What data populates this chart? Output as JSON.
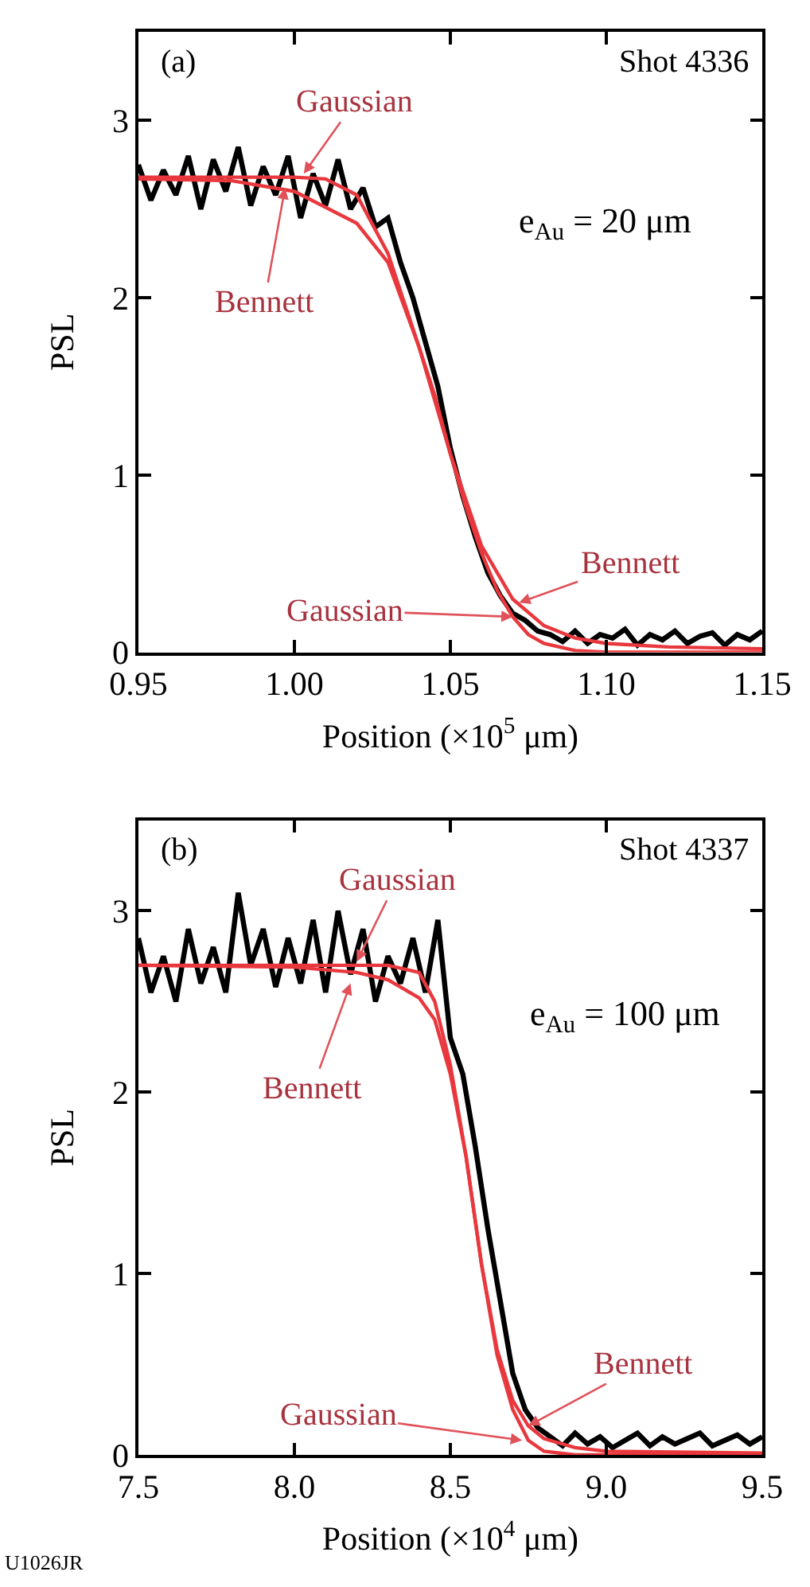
{
  "chart_data": [
    {
      "type": "line",
      "xlabel": "Position (×10$^{5}$ μm)",
      "ylabel": "PSL",
      "xlim": [
        0.95,
        1.15
      ],
      "xticks": [
        {
          "value": 0.95,
          "label": "0.95"
        },
        {
          "value": 1.0,
          "label": "1.00"
        },
        {
          "value": 1.05,
          "label": "1.05"
        },
        {
          "value": 1.1,
          "label": "1.10"
        },
        {
          "value": 1.15,
          "label": "1.15"
        }
      ],
      "ylim": [
        0,
        3.5
      ],
      "yticks": [
        0,
        1,
        2,
        3
      ],
      "series": [
        {
          "color": "#000000",
          "x": [
            0.95,
            0.954,
            0.958,
            0.962,
            0.966,
            0.97,
            0.974,
            0.978,
            0.982,
            0.986,
            0.99,
            0.994,
            0.998,
            1.002,
            1.006,
            1.01,
            1.014,
            1.018,
            1.022,
            1.026,
            1.03,
            1.034,
            1.038,
            1.042,
            1.046,
            1.05,
            1.054,
            1.058,
            1.062,
            1.066,
            1.07,
            1.074,
            1.078,
            1.082,
            1.086,
            1.09,
            1.094,
            1.098,
            1.102,
            1.106,
            1.11,
            1.114,
            1.118,
            1.122,
            1.126,
            1.13,
            1.134,
            1.138,
            1.142,
            1.146,
            1.15
          ],
          "values": [
            2.75,
            2.55,
            2.72,
            2.58,
            2.8,
            2.5,
            2.78,
            2.6,
            2.85,
            2.52,
            2.74,
            2.58,
            2.8,
            2.45,
            2.7,
            2.52,
            2.78,
            2.5,
            2.62,
            2.4,
            2.45,
            2.2,
            2.0,
            1.75,
            1.5,
            1.15,
            0.88,
            0.65,
            0.45,
            0.32,
            0.22,
            0.18,
            0.12,
            0.1,
            0.06,
            0.12,
            0.05,
            0.1,
            0.08,
            0.13,
            0.04,
            0.1,
            0.07,
            0.12,
            0.05,
            0.09,
            0.11,
            0.04,
            0.1,
            0.07,
            0.12
          ]
        },
        {
          "color": "#e8383d",
          "x": [
            0.95,
            0.98,
            1.0,
            1.01,
            1.02,
            1.03,
            1.04,
            1.045,
            1.05,
            1.055,
            1.06,
            1.065,
            1.07,
            1.075,
            1.08,
            1.09,
            1.1,
            1.15
          ],
          "values": [
            2.68,
            2.68,
            2.68,
            2.67,
            2.58,
            2.25,
            1.72,
            1.45,
            1.12,
            0.82,
            0.56,
            0.35,
            0.2,
            0.1,
            0.05,
            0.01,
            0,
            0
          ]
        },
        {
          "color": "#e8383d",
          "x": [
            0.95,
            0.98,
            1.0,
            1.02,
            1.03,
            1.04,
            1.05,
            1.06,
            1.07,
            1.08,
            1.09,
            1.1,
            1.12,
            1.15
          ],
          "values": [
            2.67,
            2.66,
            2.6,
            2.42,
            2.2,
            1.72,
            1.12,
            0.6,
            0.3,
            0.15,
            0.08,
            0.05,
            0.03,
            0.02
          ]
        }
      ],
      "annotations": [
        "(a)",
        "Shot 4336",
        "e$_{Au}$ = 20 μm",
        {
          "text": "Gaussian",
          "x": 1.003,
          "y": 2.7
        },
        {
          "text": "Bennett",
          "x": 0.997,
          "y": 2.62
        },
        {
          "text": "Bennett",
          "x": 1.072,
          "y": 0.28
        },
        {
          "text": "Gaussian",
          "x": 1.07,
          "y": 0.2
        }
      ]
    },
    {
      "type": "line",
      "xlabel": "Position (×10$^{4}$ μm)",
      "ylabel": "PSL",
      "xlim": [
        7.5,
        9.5
      ],
      "xticks": [
        {
          "value": 7.5,
          "label": "7.5"
        },
        {
          "value": 8.0,
          "label": "8.0"
        },
        {
          "value": 8.5,
          "label": "8.5"
        },
        {
          "value": 9.0,
          "label": "9.0"
        },
        {
          "value": 9.5,
          "label": "9.5"
        }
      ],
      "ylim": [
        0,
        3.5
      ],
      "yticks": [
        0,
        1,
        2,
        3
      ],
      "series": [
        {
          "color": "#000000",
          "x": [
            7.5,
            7.54,
            7.58,
            7.62,
            7.66,
            7.7,
            7.74,
            7.78,
            7.82,
            7.86,
            7.9,
            7.94,
            7.98,
            8.02,
            8.06,
            8.1,
            8.14,
            8.18,
            8.22,
            8.26,
            8.3,
            8.34,
            8.38,
            8.42,
            8.46,
            8.5,
            8.54,
            8.58,
            8.62,
            8.66,
            8.7,
            8.74,
            8.78,
            8.82,
            8.86,
            8.9,
            8.94,
            8.98,
            9.02,
            9.06,
            9.1,
            9.14,
            9.18,
            9.22,
            9.26,
            9.3,
            9.34,
            9.38,
            9.42,
            9.46,
            9.5
          ],
          "values": [
            2.85,
            2.55,
            2.75,
            2.5,
            2.9,
            2.6,
            2.8,
            2.55,
            3.1,
            2.7,
            2.9,
            2.58,
            2.85,
            2.6,
            2.95,
            2.55,
            3.0,
            2.65,
            2.9,
            2.5,
            2.75,
            2.6,
            2.85,
            2.55,
            2.95,
            2.3,
            2.1,
            1.7,
            1.25,
            0.85,
            0.45,
            0.25,
            0.15,
            0.1,
            0.05,
            0.12,
            0.06,
            0.1,
            0.04,
            0.08,
            0.12,
            0.05,
            0.1,
            0.06,
            0.09,
            0.12,
            0.05,
            0.08,
            0.11,
            0.06,
            0.1
          ]
        },
        {
          "color": "#e8383d",
          "x": [
            7.5,
            8.0,
            8.3,
            8.4,
            8.45,
            8.5,
            8.55,
            8.6,
            8.65,
            8.7,
            8.75,
            8.8,
            8.9,
            9.5
          ],
          "values": [
            2.7,
            2.7,
            2.7,
            2.66,
            2.5,
            2.15,
            1.65,
            1.05,
            0.55,
            0.25,
            0.08,
            0.02,
            0,
            0
          ]
        },
        {
          "color": "#e8383d",
          "x": [
            7.5,
            8.0,
            8.2,
            8.3,
            8.4,
            8.45,
            8.5,
            8.55,
            8.6,
            8.65,
            8.7,
            8.75,
            8.8,
            8.9,
            9.0,
            9.5
          ],
          "values": [
            2.7,
            2.69,
            2.66,
            2.62,
            2.52,
            2.4,
            2.1,
            1.65,
            1.05,
            0.58,
            0.3,
            0.16,
            0.09,
            0.04,
            0.02,
            0.01
          ]
        }
      ],
      "annotations": [
        "(b)",
        "Shot 4337",
        "e$_{Au}$ = 100 μm",
        {
          "text": "Gaussian",
          "x": 8.2,
          "y": 2.72
        },
        {
          "text": "Bennett",
          "x": 8.18,
          "y": 2.6
        },
        {
          "text": "Bennett",
          "x": 8.75,
          "y": 0.16
        },
        {
          "text": "Gaussian",
          "x": 8.73,
          "y": 0.08
        },
        "U1026JR"
      ]
    }
  ]
}
